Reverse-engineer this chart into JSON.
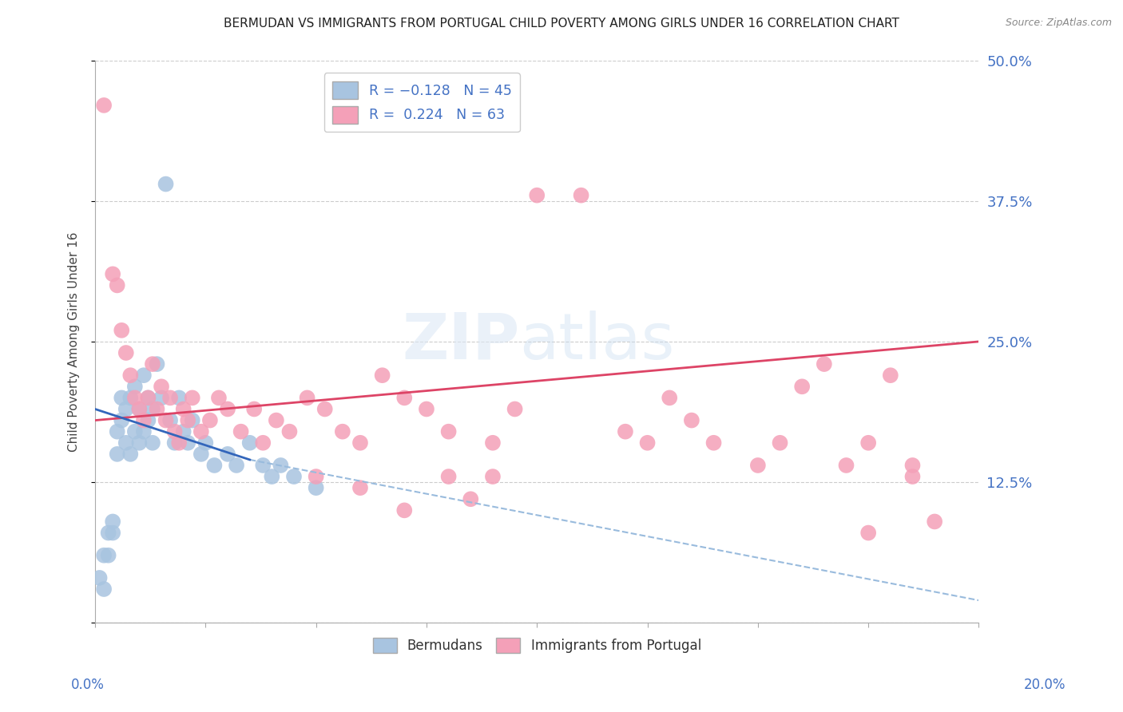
{
  "title": "BERMUDAN VS IMMIGRANTS FROM PORTUGAL CHILD POVERTY AMONG GIRLS UNDER 16 CORRELATION CHART",
  "source": "Source: ZipAtlas.com",
  "ylabel": "Child Poverty Among Girls Under 16",
  "right_ytick_labels": [
    "50.0%",
    "37.5%",
    "25.0%",
    "12.5%"
  ],
  "right_ytick_values": [
    0.5,
    0.375,
    0.25,
    0.125
  ],
  "xlim": [
    0.0,
    0.2
  ],
  "ylim": [
    0.0,
    0.5
  ],
  "legend_r1": "R = -0.128",
  "legend_n1": "N = 45",
  "legend_r2": "R =  0.224",
  "legend_n2": "N = 63",
  "blue_color": "#a8c4e0",
  "pink_color": "#f4a0b8",
  "trend_blue_solid_color": "#3366bb",
  "trend_blue_dash_color": "#99bbdd",
  "trend_pink_color": "#dd4466",
  "watermark_color": "#dde8f5",
  "blue_scatter_x": [
    0.001,
    0.002,
    0.002,
    0.003,
    0.003,
    0.004,
    0.004,
    0.005,
    0.005,
    0.006,
    0.006,
    0.007,
    0.007,
    0.008,
    0.008,
    0.009,
    0.009,
    0.01,
    0.01,
    0.011,
    0.011,
    0.012,
    0.012,
    0.013,
    0.013,
    0.014,
    0.015,
    0.016,
    0.017,
    0.018,
    0.019,
    0.02,
    0.021,
    0.022,
    0.024,
    0.025,
    0.027,
    0.03,
    0.032,
    0.035,
    0.038,
    0.04,
    0.042,
    0.045,
    0.05
  ],
  "blue_scatter_y": [
    0.04,
    0.03,
    0.06,
    0.06,
    0.08,
    0.08,
    0.09,
    0.15,
    0.17,
    0.18,
    0.2,
    0.16,
    0.19,
    0.15,
    0.2,
    0.17,
    0.21,
    0.16,
    0.19,
    0.17,
    0.22,
    0.18,
    0.2,
    0.19,
    0.16,
    0.23,
    0.2,
    0.39,
    0.18,
    0.16,
    0.2,
    0.17,
    0.16,
    0.18,
    0.15,
    0.16,
    0.14,
    0.15,
    0.14,
    0.16,
    0.14,
    0.13,
    0.14,
    0.13,
    0.12
  ],
  "pink_scatter_x": [
    0.002,
    0.004,
    0.005,
    0.006,
    0.007,
    0.008,
    0.009,
    0.01,
    0.011,
    0.012,
    0.013,
    0.014,
    0.015,
    0.016,
    0.017,
    0.018,
    0.019,
    0.02,
    0.021,
    0.022,
    0.024,
    0.026,
    0.028,
    0.03,
    0.033,
    0.036,
    0.038,
    0.041,
    0.044,
    0.048,
    0.052,
    0.056,
    0.06,
    0.065,
    0.07,
    0.075,
    0.08,
    0.09,
    0.095,
    0.1,
    0.11,
    0.12,
    0.125,
    0.13,
    0.135,
    0.14,
    0.15,
    0.155,
    0.16,
    0.165,
    0.17,
    0.175,
    0.18,
    0.185,
    0.185,
    0.19,
    0.05,
    0.06,
    0.07,
    0.08,
    0.085,
    0.09,
    0.175
  ],
  "pink_scatter_y": [
    0.46,
    0.31,
    0.3,
    0.26,
    0.24,
    0.22,
    0.2,
    0.19,
    0.18,
    0.2,
    0.23,
    0.19,
    0.21,
    0.18,
    0.2,
    0.17,
    0.16,
    0.19,
    0.18,
    0.2,
    0.17,
    0.18,
    0.2,
    0.19,
    0.17,
    0.19,
    0.16,
    0.18,
    0.17,
    0.2,
    0.19,
    0.17,
    0.16,
    0.22,
    0.2,
    0.19,
    0.17,
    0.16,
    0.19,
    0.38,
    0.38,
    0.17,
    0.16,
    0.2,
    0.18,
    0.16,
    0.14,
    0.16,
    0.21,
    0.23,
    0.14,
    0.16,
    0.22,
    0.14,
    0.13,
    0.09,
    0.13,
    0.12,
    0.1,
    0.13,
    0.11,
    0.13,
    0.08
  ],
  "trend_pink_x0": 0.0,
  "trend_pink_y0": 0.18,
  "trend_pink_x1": 0.2,
  "trend_pink_y1": 0.25,
  "trend_blue_solid_x0": 0.0,
  "trend_blue_solid_y0": 0.19,
  "trend_blue_solid_x1": 0.035,
  "trend_blue_solid_y1": 0.145,
  "trend_blue_dash_x0": 0.035,
  "trend_blue_dash_y0": 0.145,
  "trend_blue_dash_x1": 0.2,
  "trend_blue_dash_y1": 0.02
}
